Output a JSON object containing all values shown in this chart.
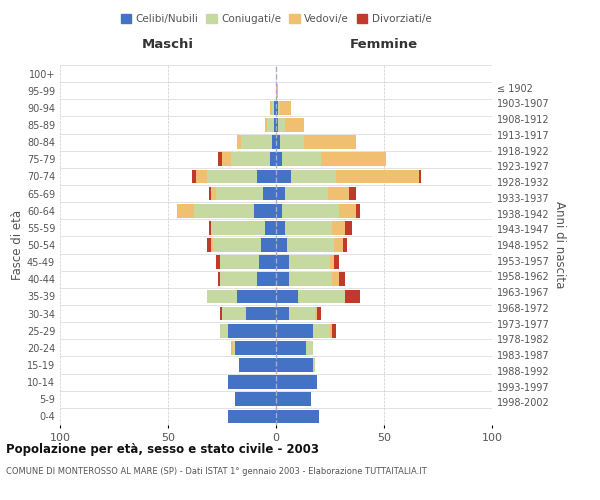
{
  "age_groups": [
    "0-4",
    "5-9",
    "10-14",
    "15-19",
    "20-24",
    "25-29",
    "30-34",
    "35-39",
    "40-44",
    "45-49",
    "50-54",
    "55-59",
    "60-64",
    "65-69",
    "70-74",
    "75-79",
    "80-84",
    "85-89",
    "90-94",
    "95-99",
    "100+"
  ],
  "birth_years": [
    "1998-2002",
    "1993-1997",
    "1988-1992",
    "1983-1987",
    "1978-1982",
    "1973-1977",
    "1968-1972",
    "1963-1967",
    "1958-1962",
    "1953-1957",
    "1948-1952",
    "1943-1947",
    "1938-1942",
    "1933-1937",
    "1928-1932",
    "1923-1927",
    "1918-1922",
    "1913-1917",
    "1908-1912",
    "1903-1907",
    "≤ 1902"
  ],
  "males": {
    "celibi": [
      22,
      19,
      22,
      17,
      19,
      22,
      14,
      18,
      9,
      8,
      7,
      5,
      10,
      6,
      9,
      3,
      2,
      1,
      1,
      0,
      0
    ],
    "coniugati": [
      0,
      0,
      0,
      0,
      1,
      4,
      11,
      14,
      17,
      18,
      22,
      25,
      28,
      22,
      23,
      18,
      14,
      3,
      1,
      0,
      0
    ],
    "vedovi": [
      0,
      0,
      0,
      0,
      1,
      0,
      0,
      0,
      0,
      0,
      1,
      0,
      8,
      2,
      5,
      4,
      2,
      1,
      1,
      0,
      0
    ],
    "divorziati": [
      0,
      0,
      0,
      0,
      0,
      0,
      1,
      0,
      1,
      2,
      2,
      1,
      0,
      1,
      2,
      2,
      0,
      0,
      0,
      0,
      0
    ]
  },
  "females": {
    "nubili": [
      20,
      16,
      19,
      17,
      14,
      17,
      6,
      10,
      6,
      6,
      5,
      4,
      3,
      4,
      7,
      3,
      2,
      1,
      1,
      0,
      0
    ],
    "coniugate": [
      0,
      0,
      0,
      1,
      3,
      8,
      12,
      22,
      20,
      19,
      22,
      22,
      26,
      20,
      21,
      18,
      11,
      3,
      1,
      0,
      0
    ],
    "vedove": [
      0,
      0,
      0,
      0,
      0,
      1,
      1,
      0,
      3,
      2,
      4,
      6,
      8,
      10,
      38,
      30,
      24,
      9,
      5,
      1,
      0
    ],
    "divorziate": [
      0,
      0,
      0,
      0,
      0,
      2,
      2,
      7,
      3,
      2,
      2,
      3,
      2,
      3,
      1,
      0,
      0,
      0,
      0,
      0,
      0
    ]
  },
  "colors": {
    "celibi": "#4472c4",
    "coniugati": "#c5d9a0",
    "vedovi": "#f0c070",
    "divorziati": "#c0392b"
  },
  "xlim": [
    -100,
    100
  ],
  "xticks": [
    -100,
    -50,
    0,
    50,
    100
  ],
  "xticklabels": [
    "100",
    "50",
    "0",
    "50",
    "100"
  ],
  "title": "Popolazione per età, sesso e stato civile - 2003",
  "subtitle": "COMUNE DI MONTEROSSO AL MARE (SP) - Dati ISTAT 1° gennaio 2003 - Elaborazione TUTTAITALIA.IT",
  "ylabel_left": "Fasce di età",
  "ylabel_right": "Anni di nascita",
  "label_maschi": "Maschi",
  "label_femmine": "Femmine",
  "legend_labels": [
    "Celibi/Nubili",
    "Coniugati/e",
    "Vedovi/e",
    "Divorziati/e"
  ],
  "background_color": "#ffffff",
  "bar_height": 0.8
}
